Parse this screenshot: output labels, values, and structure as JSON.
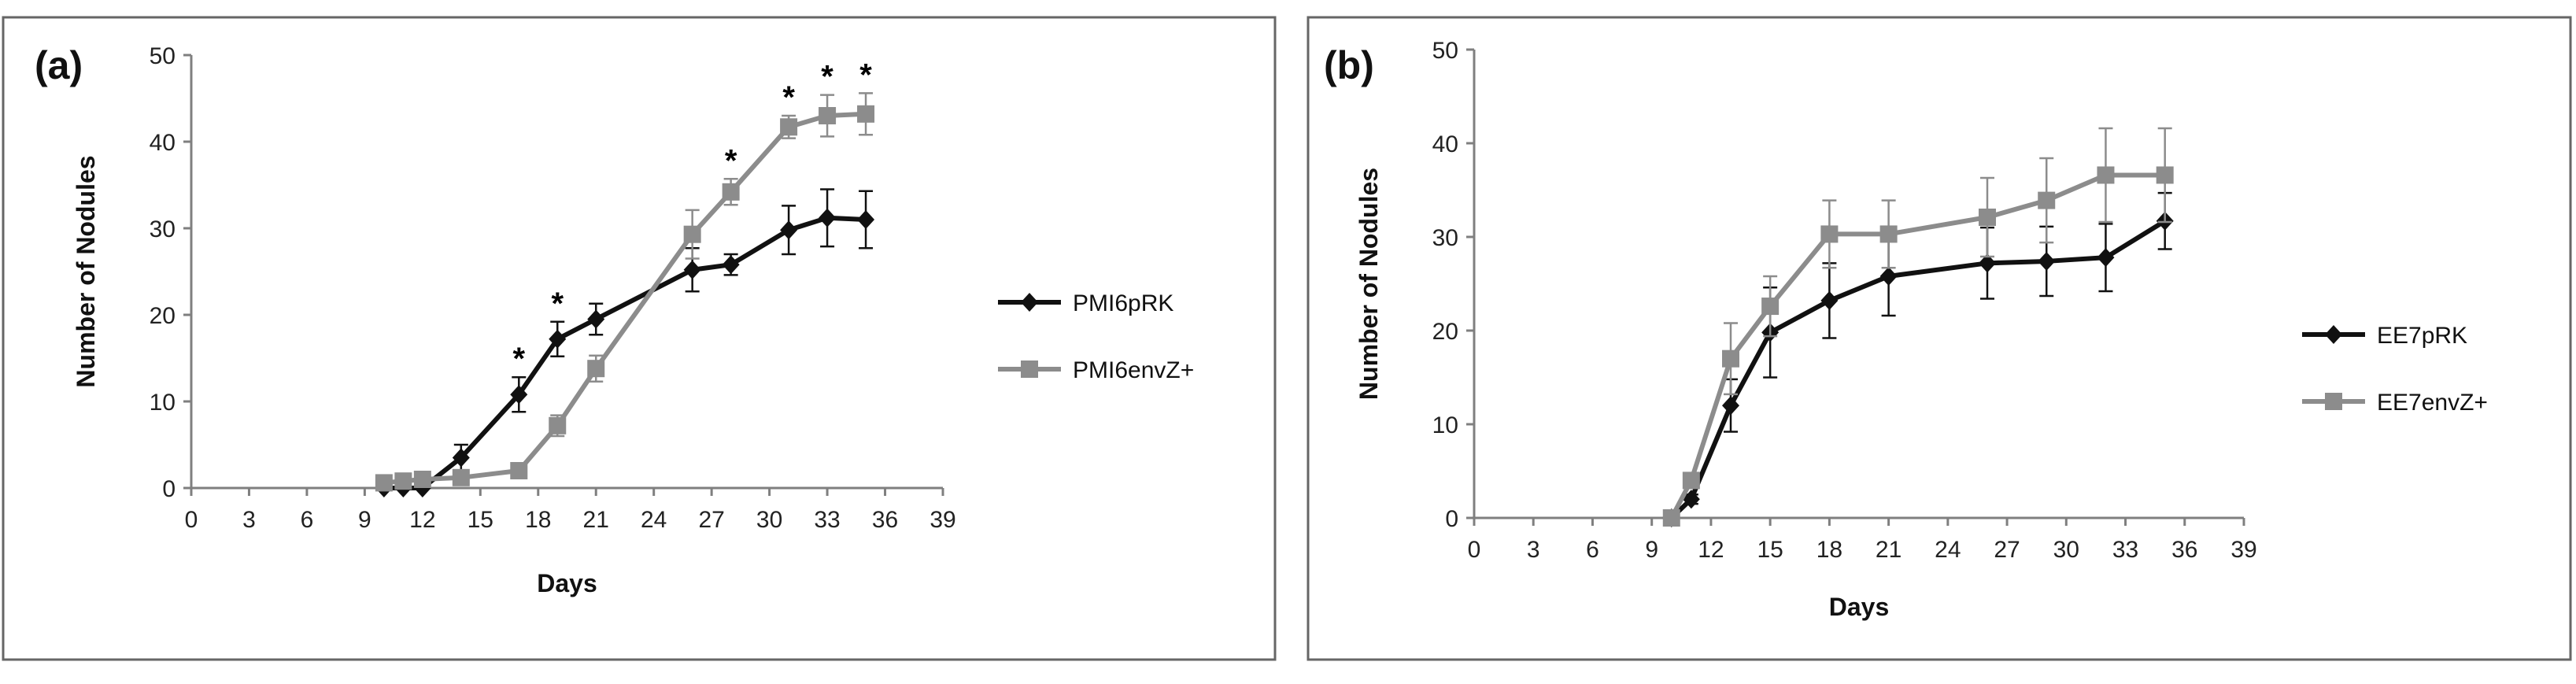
{
  "colors": {
    "series_dark": "#111111",
    "series_gray": "#8c8c8c",
    "axis": "#7f7f7f",
    "frame": "#666666"
  },
  "chart_data": [
    {
      "type": "line",
      "panel_label": "(a)",
      "title": "",
      "xlabel": "Days",
      "ylabel": "Number of Nodules",
      "xlim": [
        0,
        39
      ],
      "ylim": [
        0,
        50
      ],
      "xticks": [
        0,
        3,
        6,
        9,
        12,
        15,
        18,
        21,
        24,
        27,
        30,
        33,
        36,
        39
      ],
      "yticks": [
        0,
        10,
        20,
        30,
        40,
        50
      ],
      "grid": false,
      "legend": "right",
      "series": [
        {
          "name": "PMI6pRK",
          "marker": "diamond",
          "color": "#111111",
          "x": [
            10,
            11,
            12,
            14,
            17,
            19,
            21,
            26,
            28,
            31,
            33,
            35
          ],
          "y": [
            0,
            0,
            0,
            3.5,
            10.8,
            17.2,
            19.5,
            25.2,
            25.8,
            29.8,
            31.2,
            31.0
          ],
          "err": [
            0,
            0,
            0,
            1.5,
            2.0,
            2.0,
            1.8,
            2.5,
            1.2,
            2.8,
            3.3,
            3.3
          ]
        },
        {
          "name": "PMI6envZ+",
          "marker": "square",
          "color": "#8c8c8c",
          "x": [
            10,
            11,
            12,
            14,
            17,
            19,
            21,
            26,
            28,
            31,
            33,
            35
          ],
          "y": [
            0.6,
            0.8,
            1.0,
            1.2,
            2.0,
            7.2,
            13.8,
            29.3,
            34.2,
            41.7,
            43.0,
            43.2
          ],
          "err": [
            0,
            0,
            0,
            0.3,
            0.8,
            1.2,
            1.5,
            2.8,
            1.5,
            1.3,
            2.4,
            2.4
          ]
        }
      ],
      "significance": [
        {
          "x": 17,
          "label": "*"
        },
        {
          "x": 19,
          "label": "*"
        },
        {
          "x": 28,
          "label": "*"
        },
        {
          "x": 31,
          "label": "*"
        },
        {
          "x": 33,
          "label": "*"
        },
        {
          "x": 35,
          "label": "*"
        }
      ]
    },
    {
      "type": "line",
      "panel_label": "(b)",
      "title": "",
      "xlabel": "Days",
      "ylabel": "Number of Nodules",
      "xlim": [
        0,
        39
      ],
      "ylim": [
        0,
        50
      ],
      "xticks": [
        0,
        3,
        6,
        9,
        12,
        15,
        18,
        21,
        24,
        27,
        30,
        33,
        36,
        39
      ],
      "yticks": [
        0,
        10,
        20,
        30,
        40,
        50
      ],
      "grid": false,
      "legend": "right",
      "series": [
        {
          "name": "EE7pRK",
          "marker": "diamond",
          "color": "#111111",
          "x": [
            10,
            11,
            13,
            15,
            18,
            21,
            26,
            29,
            32,
            35
          ],
          "y": [
            0,
            2.0,
            12.0,
            19.8,
            23.2,
            25.8,
            27.2,
            27.4,
            27.8,
            31.7
          ],
          "err": [
            0,
            0.5,
            2.8,
            4.8,
            4.0,
            4.2,
            3.8,
            3.7,
            3.6,
            3.0
          ]
        },
        {
          "name": "EE7envZ+",
          "marker": "square",
          "color": "#8c8c8c",
          "x": [
            10,
            11,
            13,
            15,
            18,
            21,
            26,
            29,
            32,
            35
          ],
          "y": [
            0,
            4.0,
            17.0,
            22.6,
            30.3,
            30.3,
            32.1,
            33.9,
            36.6,
            36.6
          ],
          "err": [
            0,
            0.8,
            3.8,
            3.2,
            3.6,
            3.6,
            4.2,
            4.5,
            5.0,
            5.0
          ]
        }
      ],
      "significance": []
    }
  ]
}
